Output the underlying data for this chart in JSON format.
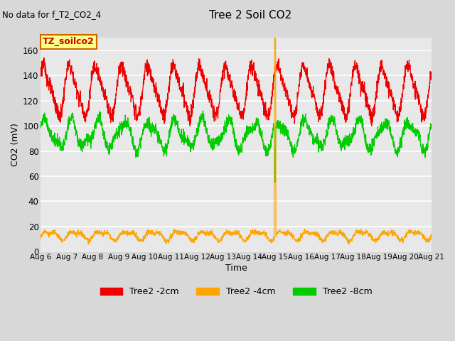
{
  "title": "Tree 2 Soil CO2",
  "no_data_text": "No data for f_T2_CO2_4",
  "ylabel": "CO2 (mV)",
  "xlabel": "Time",
  "annotation": "TZ_soilco2",
  "ylim": [
    0,
    170
  ],
  "yticks": [
    0,
    20,
    40,
    60,
    80,
    100,
    120,
    140,
    160
  ],
  "n_points": 2000,
  "background_color": "#d8d8d8",
  "plot_bg_color": "#e8e8e8",
  "grid_color": "#ffffff",
  "figsize": [
    6.4,
    4.8
  ],
  "dpi": 100,
  "series": [
    {
      "label": "Tree2 -2cm",
      "color": "#ee0000"
    },
    {
      "label": "Tree2 -4cm",
      "color": "#ffa500"
    },
    {
      "label": "Tree2 -8cm",
      "color": "#00cc00"
    }
  ]
}
